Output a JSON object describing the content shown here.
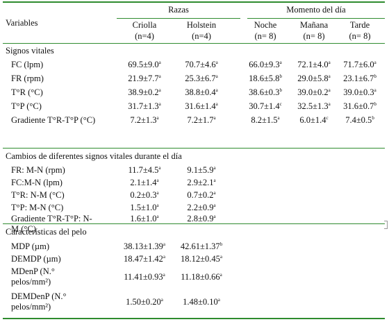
{
  "header": {
    "variables": "Variables",
    "razas": "Razas",
    "momento": "Momento del día",
    "columns": [
      {
        "name": "Criolla",
        "n": "(n=4)"
      },
      {
        "name": "Holstein",
        "n": "(n=4)"
      },
      {
        "name": "Noche",
        "n": "(n= 8)"
      },
      {
        "name": "Mañana",
        "n": "(n= 8)"
      },
      {
        "name": "Tarde",
        "n": "(n= 8)"
      }
    ]
  },
  "sections": {
    "signos": "Signos vitales",
    "cambios": "Cambios de diferentes signos vitales durante el día",
    "pelo": "Características del pelo"
  },
  "signos_rows": [
    {
      "label": "FC (lpm)",
      "values": [
        [
          "69.5±9.0",
          "a"
        ],
        [
          "70.7±4.6",
          "a"
        ],
        [
          "66.0±9.3",
          "a"
        ],
        [
          "72.1±4.0",
          "a"
        ],
        [
          "71.7±6.0",
          "a"
        ]
      ]
    },
    {
      "label": "FR (rpm)",
      "values": [
        [
          "21.9±7.7",
          "a"
        ],
        [
          "25.3±6.7",
          "a"
        ],
        [
          "18.6±5.8",
          "b"
        ],
        [
          "29.0±5.8",
          "a"
        ],
        [
          "23.1±6.7",
          "b"
        ]
      ]
    },
    {
      "label": "T°R (°C)",
      "values": [
        [
          "38.9±0.2",
          "a"
        ],
        [
          "38.8±0.4",
          "a"
        ],
        [
          "38.6±0.3",
          "b"
        ],
        [
          "39.0±0.2",
          "a"
        ],
        [
          "39.0±0.3",
          "a"
        ]
      ]
    },
    {
      "label": "T°P (°C)",
      "values": [
        [
          "31.7±1.3",
          "a"
        ],
        [
          "31.6±1.4",
          "a"
        ],
        [
          "30.7±1.4",
          "c"
        ],
        [
          "32.5±1.3",
          "a"
        ],
        [
          "31.6±0.7",
          "b"
        ]
      ]
    },
    {
      "label": "Gradiente T°R-T°P (°C)",
      "values": [
        [
          "7.2±1.3",
          "a"
        ],
        [
          "7.2±1.7",
          "a"
        ],
        [
          "8.2±1.5",
          "a"
        ],
        [
          "6.0±1.4",
          "c"
        ],
        [
          "7.4±0.5",
          "b"
        ]
      ]
    }
  ],
  "cambios_rows": [
    {
      "label": "FR: M-N (rpm)",
      "values": [
        [
          "11.7±4.5",
          "a"
        ],
        [
          "9.1±5.9",
          "a"
        ]
      ]
    },
    {
      "label": "FC:M-N (lpm)",
      "values": [
        [
          "2.1±1.4",
          "a"
        ],
        [
          "2.9±2.1",
          "a"
        ]
      ]
    },
    {
      "label": "T°R: N-M (°C)",
      "values": [
        [
          "0.2±0.3",
          "a"
        ],
        [
          "0.7±0.2",
          "a"
        ]
      ]
    },
    {
      "label": "T°P: M-N (°C)",
      "values": [
        [
          "1.5±1.0",
          "a"
        ],
        [
          "2.2±0.9",
          "a"
        ]
      ]
    },
    {
      "label_l1": "Gradiente T°R-T°P: N-",
      "label_l2": "M (°C)",
      "values": [
        [
          "1.6±1.0",
          "a"
        ],
        [
          "2.8±0.9",
          "a"
        ]
      ]
    }
  ],
  "pelo_rows": [
    {
      "label": "MDP (µm)",
      "values": [
        [
          "38.13±1.39",
          "a"
        ],
        [
          "42.61±1.37",
          "b"
        ]
      ]
    },
    {
      "label": "DEMDP (µm)",
      "values": [
        [
          "18.47±1.42",
          "a"
        ],
        [
          "18.12±0.45",
          "a"
        ]
      ]
    },
    {
      "label_l1": "MDenP (N.°",
      "label_l2": "pelos/mm²)",
      "values": [
        [
          "11.41±0.93",
          "a"
        ],
        [
          "11.18±0.66",
          "a"
        ]
      ]
    },
    {
      "label_l1": "DEMDenP (N.°",
      "label_l2": "pelos/mm²)",
      "values": [
        [
          "1.50±0.20",
          "a"
        ],
        [
          "1.48±0.10",
          "a"
        ]
      ]
    }
  ]
}
